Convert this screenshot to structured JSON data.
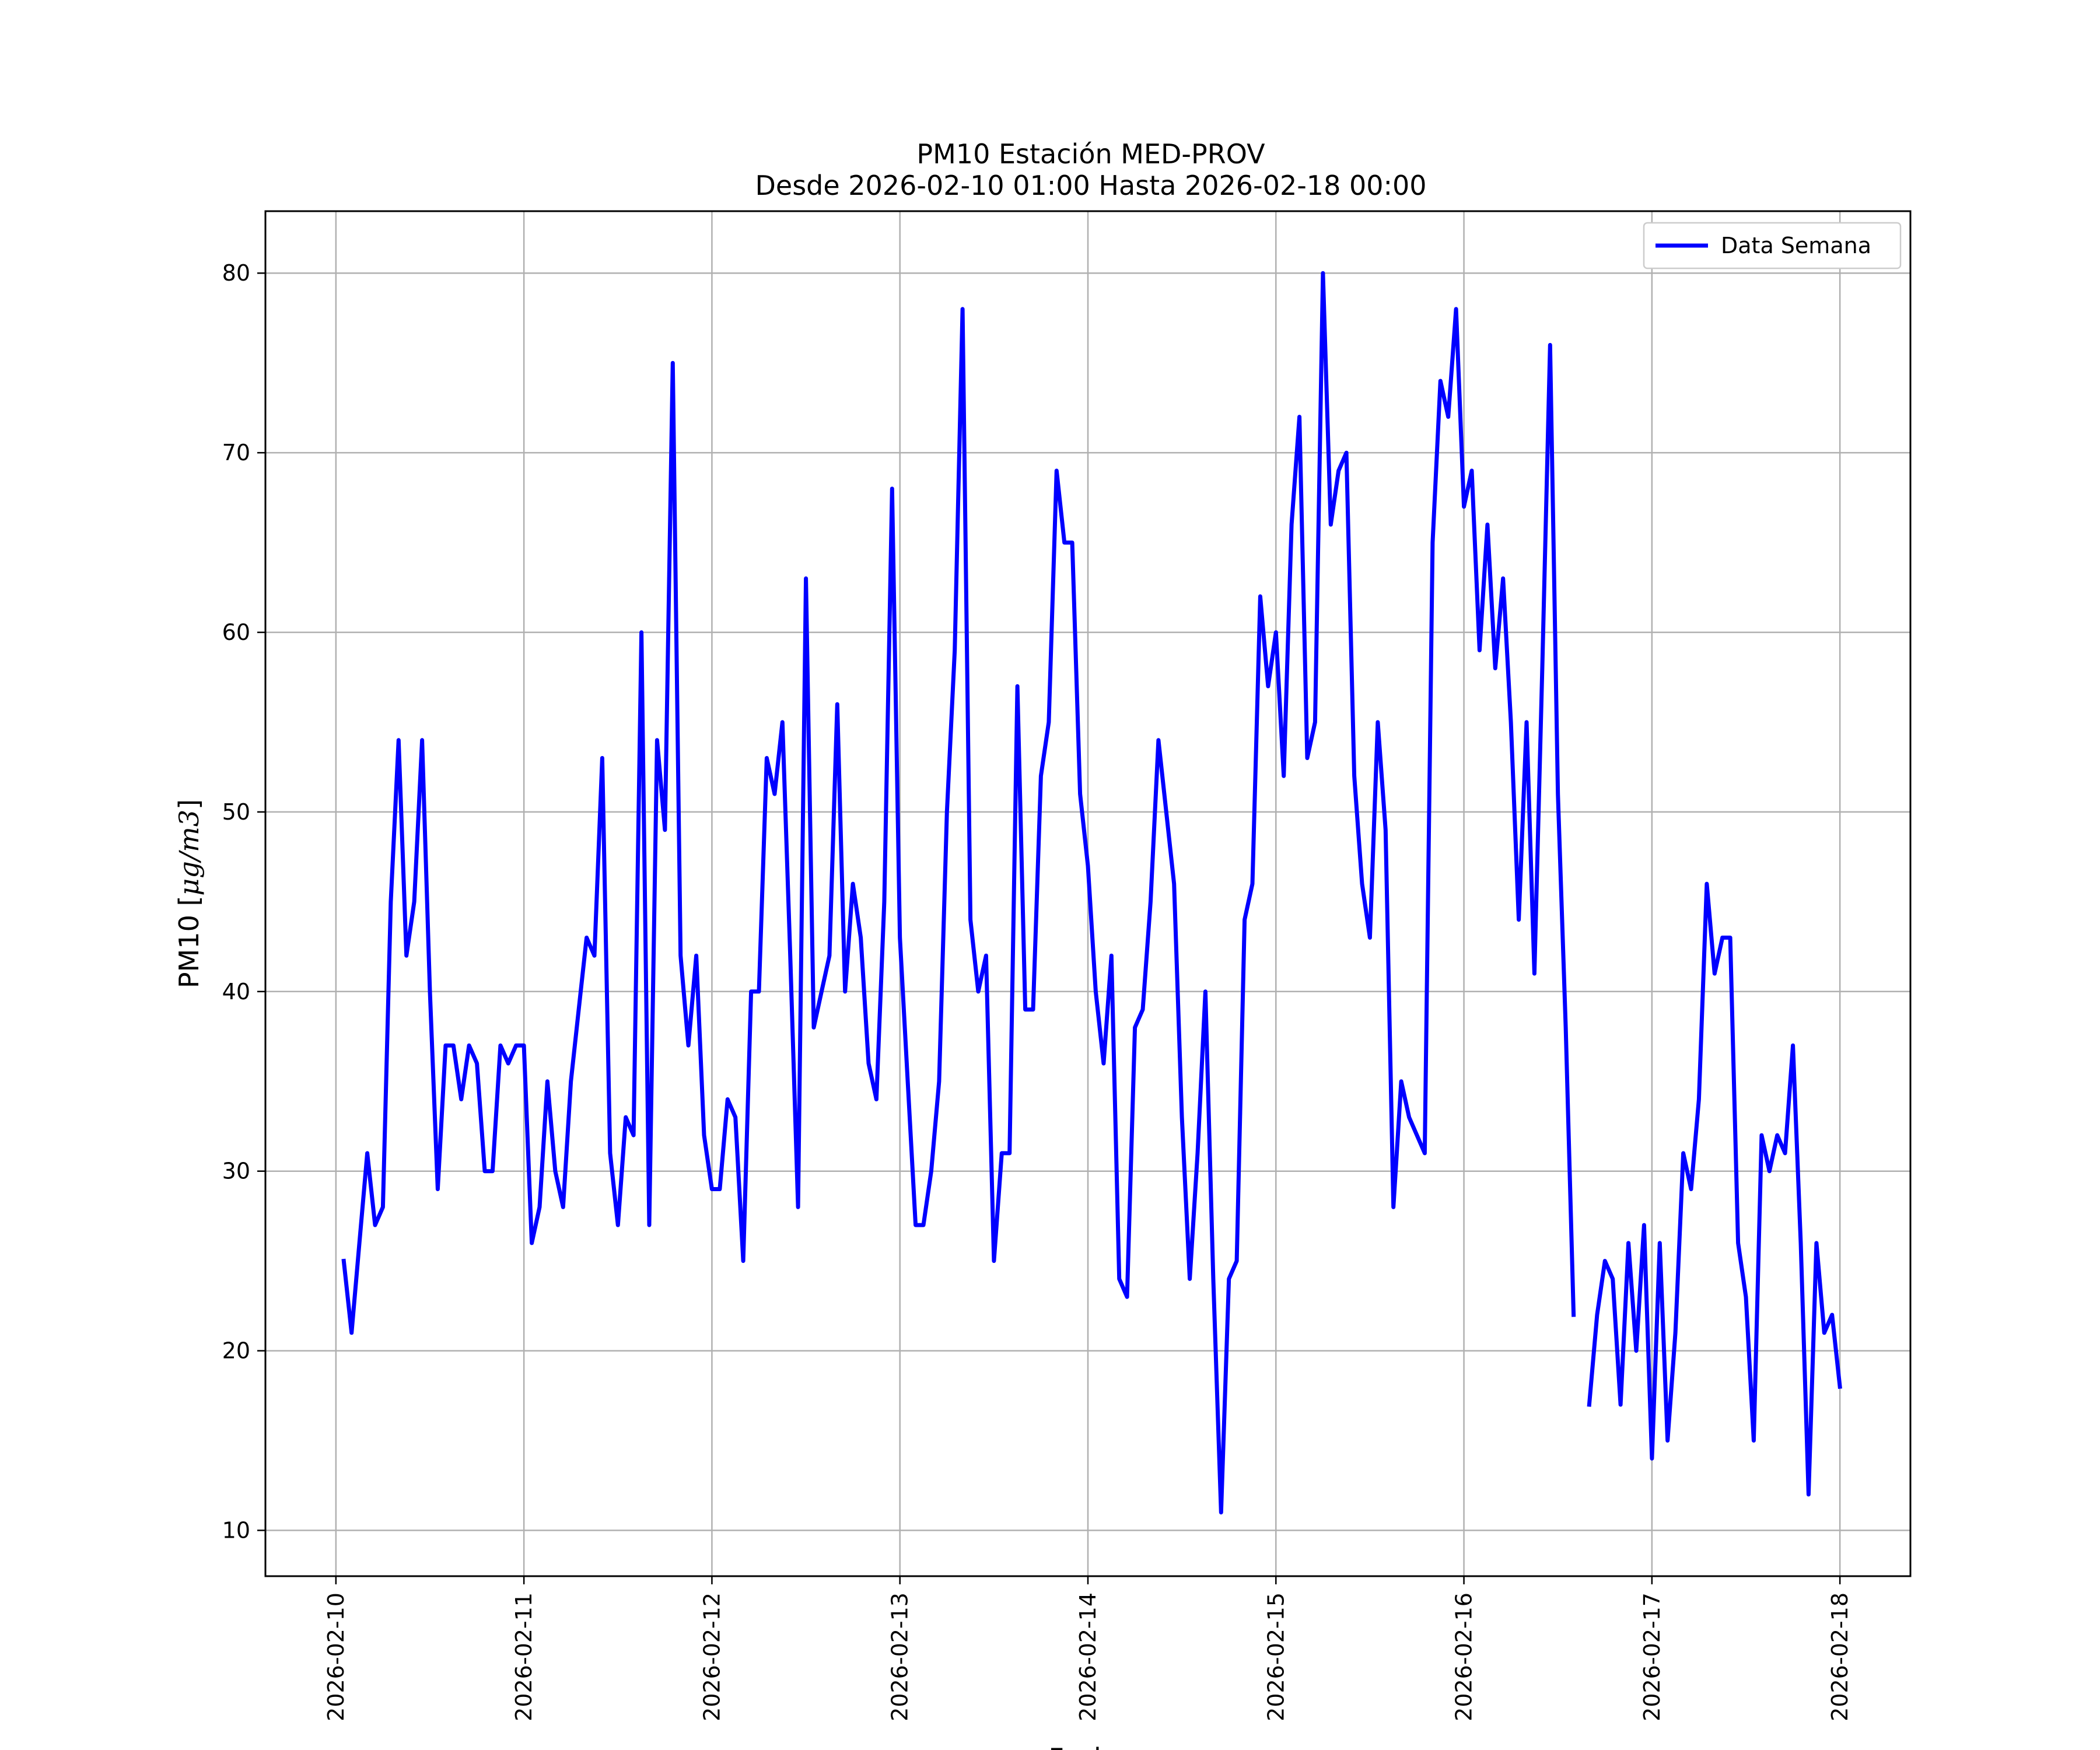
{
  "chart_data": {
    "type": "line",
    "title": "PM10 Estación MED-PROV",
    "subtitle": "Desde 2026-02-10 01:00 Hasta 2026-02-18 00:00",
    "xlabel": "Fecha",
    "ylabel_text": "PM10 [",
    "ylabel_unit": "μg/m3",
    "ylabel_close": "]",
    "ylim": [
      7.45,
      83.45
    ],
    "xlim": [
      "2026-02-09 15:00",
      "2026-02-18 09:00"
    ],
    "grid": true,
    "legend_position": "upper right",
    "x_ticks": [
      "2026-02-10",
      "2026-02-11",
      "2026-02-12",
      "2026-02-13",
      "2026-02-14",
      "2026-02-15",
      "2026-02-16",
      "2026-02-17",
      "2026-02-18"
    ],
    "y_ticks": [
      10,
      20,
      30,
      40,
      50,
      60,
      70,
      80
    ],
    "series": [
      {
        "name": "Data Semana",
        "color": "#0000ff",
        "x": [
          "2026-02-10 01:00",
          "2026-02-10 02:00",
          "2026-02-10 03:00",
          "2026-02-10 04:00",
          "2026-02-10 05:00",
          "2026-02-10 06:00",
          "2026-02-10 07:00",
          "2026-02-10 08:00",
          "2026-02-10 09:00",
          "2026-02-10 10:00",
          "2026-02-10 11:00",
          "2026-02-10 12:00",
          "2026-02-10 13:00",
          "2026-02-10 14:00",
          "2026-02-10 15:00",
          "2026-02-10 16:00",
          "2026-02-10 17:00",
          "2026-02-10 18:00",
          "2026-02-10 19:00",
          "2026-02-10 20:00",
          "2026-02-10 21:00",
          "2026-02-10 22:00",
          "2026-02-10 23:00",
          "2026-02-11 00:00",
          "2026-02-11 01:00",
          "2026-02-11 02:00",
          "2026-02-11 03:00",
          "2026-02-11 04:00",
          "2026-02-11 05:00",
          "2026-02-11 06:00",
          "2026-02-11 07:00",
          "2026-02-11 08:00",
          "2026-02-11 09:00",
          "2026-02-11 10:00",
          "2026-02-11 11:00",
          "2026-02-11 12:00",
          "2026-02-11 13:00",
          "2026-02-11 14:00",
          "2026-02-11 15:00",
          "2026-02-11 16:00",
          "2026-02-11 17:00",
          "2026-02-11 18:00",
          "2026-02-11 19:00",
          "2026-02-11 20:00",
          "2026-02-11 21:00",
          "2026-02-11 22:00",
          "2026-02-11 23:00",
          "2026-02-12 00:00",
          "2026-02-12 01:00",
          "2026-02-12 02:00",
          "2026-02-12 03:00",
          "2026-02-12 04:00",
          "2026-02-12 05:00",
          "2026-02-12 06:00",
          "2026-02-12 07:00",
          "2026-02-12 08:00",
          "2026-02-12 09:00",
          "2026-02-12 10:00",
          "2026-02-12 11:00",
          "2026-02-12 12:00",
          "2026-02-12 13:00",
          "2026-02-12 14:00",
          "2026-02-12 15:00",
          "2026-02-12 16:00",
          "2026-02-12 17:00",
          "2026-02-12 18:00",
          "2026-02-12 19:00",
          "2026-02-12 20:00",
          "2026-02-12 21:00",
          "2026-02-12 22:00",
          "2026-02-12 23:00",
          "2026-02-13 00:00",
          "2026-02-13 01:00",
          "2026-02-13 02:00",
          "2026-02-13 03:00",
          "2026-02-13 04:00",
          "2026-02-13 05:00",
          "2026-02-13 06:00",
          "2026-02-13 07:00",
          "2026-02-13 08:00",
          "2026-02-13 09:00",
          "2026-02-13 10:00",
          "2026-02-13 11:00",
          "2026-02-13 12:00",
          "2026-02-13 13:00",
          "2026-02-13 14:00",
          "2026-02-13 15:00",
          "2026-02-13 16:00",
          "2026-02-13 17:00",
          "2026-02-13 18:00",
          "2026-02-13 19:00",
          "2026-02-13 20:00",
          "2026-02-13 21:00",
          "2026-02-13 22:00",
          "2026-02-13 23:00",
          "2026-02-14 00:00",
          "2026-02-14 01:00",
          "2026-02-14 02:00",
          "2026-02-14 03:00",
          "2026-02-14 04:00",
          "2026-02-14 05:00",
          "2026-02-14 06:00",
          "2026-02-14 07:00",
          "2026-02-14 08:00",
          "2026-02-14 09:00",
          "2026-02-14 10:00",
          "2026-02-14 11:00",
          "2026-02-14 12:00",
          "2026-02-14 13:00",
          "2026-02-14 14:00",
          "2026-02-14 15:00",
          "2026-02-14 16:00",
          "2026-02-14 17:00",
          "2026-02-14 18:00",
          "2026-02-14 19:00",
          "2026-02-14 20:00",
          "2026-02-14 21:00",
          "2026-02-14 22:00",
          "2026-02-14 23:00",
          "2026-02-15 00:00",
          "2026-02-15 01:00",
          "2026-02-15 02:00",
          "2026-02-15 03:00",
          "2026-02-15 04:00",
          "2026-02-15 05:00",
          "2026-02-15 06:00",
          "2026-02-15 07:00",
          "2026-02-15 08:00",
          "2026-02-15 09:00",
          "2026-02-15 10:00",
          "2026-02-15 11:00",
          "2026-02-15 12:00",
          "2026-02-15 13:00",
          "2026-02-15 14:00",
          "2026-02-15 15:00",
          "2026-02-15 16:00",
          "2026-02-15 17:00",
          "2026-02-15 18:00",
          "2026-02-15 19:00",
          "2026-02-15 20:00",
          "2026-02-15 21:00",
          "2026-02-15 22:00",
          "2026-02-15 23:00",
          "2026-02-16 00:00",
          "2026-02-16 01:00",
          "2026-02-16 02:00",
          "2026-02-16 03:00",
          "2026-02-16 04:00",
          "2026-02-16 05:00",
          "2026-02-16 06:00",
          "2026-02-16 07:00",
          "2026-02-16 08:00",
          "2026-02-16 09:00",
          "2026-02-16 10:00",
          "2026-02-16 11:00",
          "2026-02-16 12:00",
          "2026-02-16 13:00",
          "2026-02-16 14:00",
          "2026-02-16 15:00",
          "2026-02-16 16:00",
          "2026-02-16 17:00",
          "2026-02-16 18:00",
          "2026-02-16 19:00",
          "2026-02-16 20:00",
          "2026-02-16 21:00",
          "2026-02-16 22:00",
          "2026-02-16 23:00",
          "2026-02-17 00:00",
          "2026-02-17 01:00",
          "2026-02-17 02:00",
          "2026-02-17 03:00",
          "2026-02-17 04:00",
          "2026-02-17 05:00",
          "2026-02-17 06:00",
          "2026-02-17 07:00",
          "2026-02-17 08:00",
          "2026-02-17 09:00",
          "2026-02-17 10:00",
          "2026-02-17 11:00",
          "2026-02-17 12:00",
          "2026-02-17 13:00",
          "2026-02-17 14:00",
          "2026-02-17 15:00",
          "2026-02-17 16:00",
          "2026-02-17 17:00",
          "2026-02-17 18:00",
          "2026-02-17 19:00",
          "2026-02-17 20:00",
          "2026-02-17 21:00",
          "2026-02-17 22:00",
          "2026-02-17 23:00",
          "2026-02-18 00:00"
        ],
        "y": [
          25,
          21,
          26,
          31,
          27,
          28,
          45,
          54,
          42,
          45,
          54,
          40,
          29,
          37,
          37,
          34,
          37,
          36,
          30,
          30,
          37,
          36,
          37,
          37,
          26,
          28,
          35,
          30,
          28,
          35,
          39,
          43,
          42,
          53,
          31,
          27,
          33,
          32,
          60,
          27,
          54,
          49,
          75,
          42,
          37,
          42,
          32,
          29,
          29,
          34,
          33,
          25,
          40,
          40,
          53,
          51,
          55,
          42,
          28,
          63,
          38,
          40,
          42,
          56,
          40,
          46,
          43,
          36,
          34,
          45,
          68,
          43,
          35,
          27,
          27,
          30,
          35,
          50,
          59,
          78,
          44,
          40,
          42,
          25,
          31,
          31,
          57,
          39,
          39,
          52,
          55,
          69,
          65,
          65,
          51,
          47,
          40,
          36,
          42,
          24,
          23,
          38,
          39,
          45,
          54,
          50,
          46,
          33,
          24,
          31,
          40,
          24,
          11,
          24,
          25,
          44,
          46,
          62,
          57,
          60,
          52,
          66,
          72,
          53,
          55,
          80,
          66,
          69,
          70,
          52,
          46,
          43,
          55,
          49,
          28,
          35,
          33,
          32,
          31,
          65,
          74,
          72,
          78,
          67,
          69,
          59,
          66,
          58,
          63,
          55,
          44,
          55,
          41,
          58,
          76,
          51,
          38,
          22,
          null,
          17,
          22,
          25,
          24,
          17,
          26,
          20,
          27,
          14,
          26,
          15,
          21,
          31,
          29,
          34,
          46,
          41,
          43,
          43,
          26,
          23,
          15,
          32,
          30,
          32,
          31,
          37,
          26,
          12,
          26,
          21,
          22,
          18
        ]
      }
    ]
  }
}
